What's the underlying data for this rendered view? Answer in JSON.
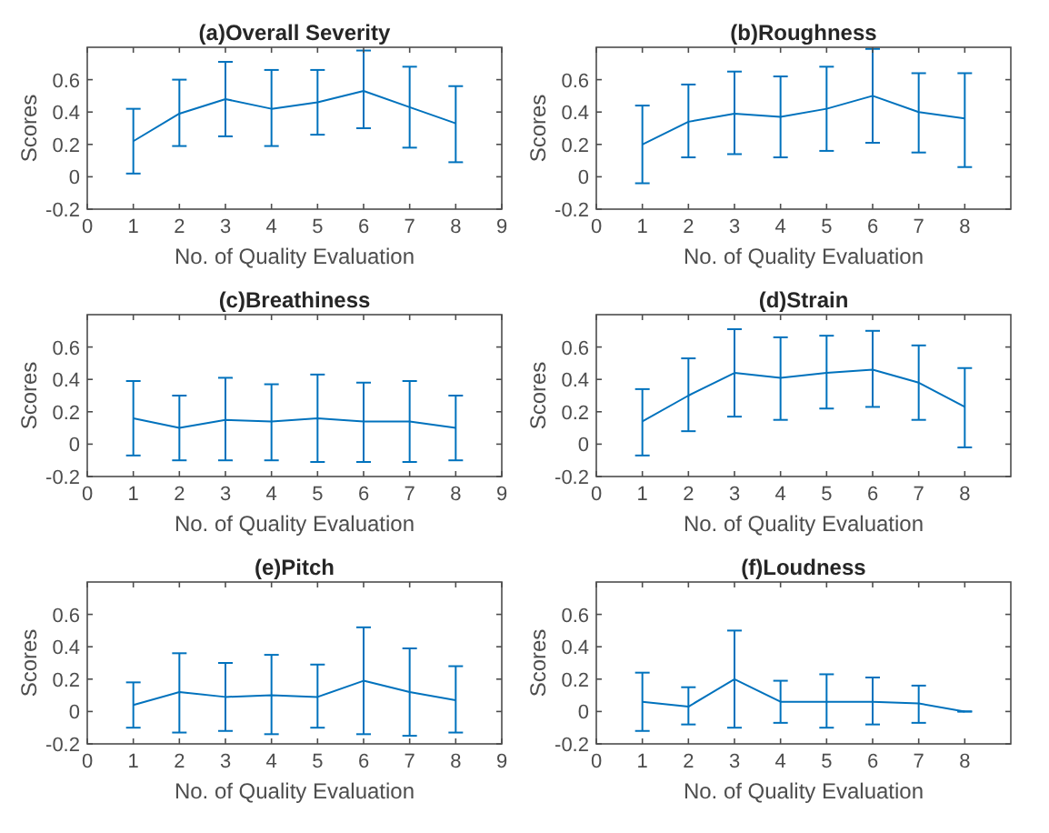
{
  "chart_data": [
    {
      "type": "line",
      "title": "(a)Overall Severity",
      "xlabel": "No. of Quality Evaluation",
      "ylabel": "Scores",
      "x": [
        1,
        2,
        3,
        4,
        5,
        6,
        7,
        8
      ],
      "xlim": [
        0,
        9
      ],
      "xticks": [
        0,
        1,
        2,
        3,
        4,
        5,
        6,
        7,
        8,
        9
      ],
      "ylim": [
        -0.2,
        0.8
      ],
      "yticks": [
        -0.2,
        0,
        0.2,
        0.4,
        0.6
      ],
      "grid": false,
      "marker": "none",
      "series": [
        {
          "color": "#0072bd",
          "values": [
            0.22,
            0.39,
            0.48,
            0.42,
            0.46,
            0.53,
            0.43,
            0.33
          ],
          "errors": [
            [
              0.02,
              0.42
            ],
            [
              0.19,
              0.6
            ],
            [
              0.25,
              0.71
            ],
            [
              0.19,
              0.66
            ],
            [
              0.26,
              0.66
            ],
            [
              0.3,
              0.78
            ],
            [
              0.18,
              0.68
            ],
            [
              0.09,
              0.56
            ]
          ]
        }
      ]
    },
    {
      "type": "line",
      "title": "(b)Roughness",
      "xlabel": "No. of Quality Evaluation",
      "ylabel": "Scores",
      "x": [
        1,
        2,
        3,
        4,
        5,
        6,
        7,
        8
      ],
      "xlim": [
        0,
        9
      ],
      "xticks": [
        0,
        1,
        2,
        3,
        4,
        5,
        6,
        7,
        8
      ],
      "ylim": [
        -0.2,
        0.8
      ],
      "yticks": [
        -0.2,
        0,
        0.2,
        0.4,
        0.6
      ],
      "grid": false,
      "marker": "none",
      "series": [
        {
          "color": "#0072bd",
          "values": [
            0.2,
            0.34,
            0.39,
            0.37,
            0.42,
            0.5,
            0.4,
            0.36
          ],
          "errors": [
            [
              -0.04,
              0.44
            ],
            [
              0.12,
              0.57
            ],
            [
              0.14,
              0.65
            ],
            [
              0.12,
              0.62
            ],
            [
              0.16,
              0.68
            ],
            [
              0.21,
              0.79
            ],
            [
              0.15,
              0.64
            ],
            [
              0.06,
              0.64
            ]
          ]
        }
      ]
    },
    {
      "type": "line",
      "title": "(c)Breathiness",
      "xlabel": "No. of Quality Evaluation",
      "ylabel": "Scores",
      "x": [
        1,
        2,
        3,
        4,
        5,
        6,
        7,
        8
      ],
      "xlim": [
        0,
        9
      ],
      "xticks": [
        0,
        1,
        2,
        3,
        4,
        5,
        6,
        7,
        8,
        9
      ],
      "ylim": [
        -0.2,
        0.8
      ],
      "yticks": [
        -0.2,
        0,
        0.2,
        0.4,
        0.6
      ],
      "grid": false,
      "marker": "none",
      "series": [
        {
          "color": "#0072bd",
          "values": [
            0.16,
            0.1,
            0.15,
            0.14,
            0.16,
            0.14,
            0.14,
            0.1
          ],
          "errors": [
            [
              -0.07,
              0.39
            ],
            [
              -0.1,
              0.3
            ],
            [
              -0.1,
              0.41
            ],
            [
              -0.1,
              0.37
            ],
            [
              -0.11,
              0.43
            ],
            [
              -0.11,
              0.38
            ],
            [
              -0.11,
              0.39
            ],
            [
              -0.1,
              0.3
            ]
          ]
        }
      ]
    },
    {
      "type": "line",
      "title": "(d)Strain",
      "xlabel": "No. of Quality Evaluation",
      "ylabel": "Scores",
      "x": [
        1,
        2,
        3,
        4,
        5,
        6,
        7,
        8
      ],
      "xlim": [
        0,
        9
      ],
      "xticks": [
        0,
        1,
        2,
        3,
        4,
        5,
        6,
        7,
        8
      ],
      "ylim": [
        -0.2,
        0.8
      ],
      "yticks": [
        -0.2,
        0,
        0.2,
        0.4,
        0.6
      ],
      "grid": false,
      "marker": "none",
      "series": [
        {
          "color": "#0072bd",
          "values": [
            0.14,
            0.3,
            0.44,
            0.41,
            0.44,
            0.46,
            0.38,
            0.23
          ],
          "errors": [
            [
              -0.07,
              0.34
            ],
            [
              0.08,
              0.53
            ],
            [
              0.17,
              0.71
            ],
            [
              0.15,
              0.66
            ],
            [
              0.22,
              0.67
            ],
            [
              0.23,
              0.7
            ],
            [
              0.15,
              0.61
            ],
            [
              -0.02,
              0.47
            ]
          ]
        }
      ]
    },
    {
      "type": "line",
      "title": "(e)Pitch",
      "xlabel": "No. of Quality Evaluation",
      "ylabel": "Scores",
      "x": [
        1,
        2,
        3,
        4,
        5,
        6,
        7,
        8
      ],
      "xlim": [
        0,
        9
      ],
      "xticks": [
        0,
        1,
        2,
        3,
        4,
        5,
        6,
        7,
        8,
        9
      ],
      "ylim": [
        -0.2,
        0.8
      ],
      "yticks": [
        -0.2,
        0,
        0.2,
        0.4,
        0.6
      ],
      "grid": false,
      "marker": "none",
      "series": [
        {
          "color": "#0072bd",
          "values": [
            0.04,
            0.12,
            0.09,
            0.1,
            0.09,
            0.19,
            0.12,
            0.07
          ],
          "errors": [
            [
              -0.1,
              0.18
            ],
            [
              -0.13,
              0.36
            ],
            [
              -0.12,
              0.3
            ],
            [
              -0.14,
              0.35
            ],
            [
              -0.1,
              0.29
            ],
            [
              -0.14,
              0.52
            ],
            [
              -0.15,
              0.39
            ],
            [
              -0.13,
              0.28
            ]
          ]
        }
      ]
    },
    {
      "type": "line",
      "title": "(f)Loudness",
      "xlabel": "No. of Quality Evaluation",
      "ylabel": "Scores",
      "x": [
        1,
        2,
        3,
        4,
        5,
        6,
        7,
        8
      ],
      "xlim": [
        0,
        9
      ],
      "xticks": [
        0,
        1,
        2,
        3,
        4,
        5,
        6,
        7,
        8
      ],
      "ylim": [
        -0.2,
        0.8
      ],
      "yticks": [
        -0.2,
        0,
        0.2,
        0.4,
        0.6
      ],
      "grid": false,
      "marker": "none",
      "series": [
        {
          "color": "#0072bd",
          "values": [
            0.06,
            0.03,
            0.2,
            0.06,
            0.06,
            0.06,
            0.05,
            0
          ],
          "errors": [
            [
              -0.12,
              0.24
            ],
            [
              -0.08,
              0.15
            ],
            [
              -0.1,
              0.5
            ],
            [
              -0.07,
              0.19
            ],
            [
              -0.1,
              0.23
            ],
            [
              -0.08,
              0.21
            ],
            [
              -0.07,
              0.16
            ],
            [
              0,
              0
            ]
          ]
        }
      ]
    }
  ]
}
